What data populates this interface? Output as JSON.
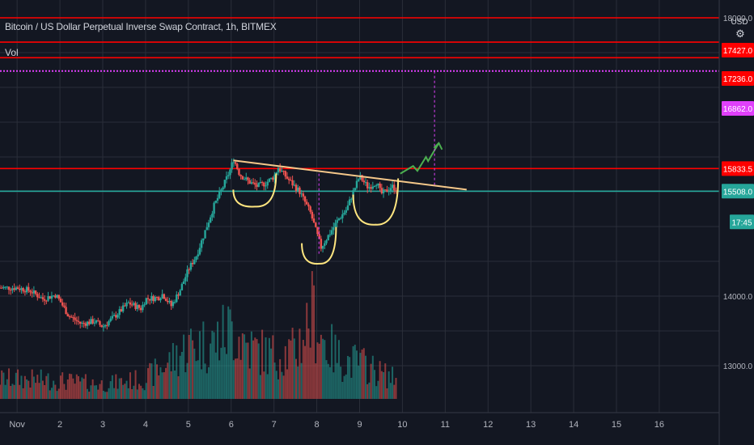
{
  "header": {
    "title": "Bitcoin / US Dollar Perpetual Inverse Swap Contract, 1h, BITMEX",
    "volume_label": "Vol",
    "currency": "USD",
    "gear_icon": "gear-icon"
  },
  "colors": {
    "background": "#131722",
    "grid": "#2a2e39",
    "up": "#26a69a",
    "down": "#ef5350",
    "resistance": "#ff0000",
    "target": "#e040fb",
    "current": "#26a69a",
    "annotation": "#ffe680",
    "trendline": "#f5c88a",
    "projection": "#4caf50"
  },
  "chart_data": {
    "type": "candlestick",
    "title": "Bitcoin / US Dollar Perpetual Inverse Swap Contract, 1h, BITMEX",
    "x_ticks": [
      "Nov",
      "2",
      "3",
      "4",
      "5",
      "6",
      "7",
      "8",
      "9",
      "10",
      "11",
      "12",
      "13",
      "14",
      "15",
      "16"
    ],
    "y_ticks": [
      13000.0,
      14000.0,
      18000.0
    ],
    "ylim": [
      12700,
      18000
    ],
    "xlim": [
      0.6,
      17.4
    ],
    "price_labels": [
      {
        "value": "17427.0",
        "color": "#ff0000",
        "kind": "resistance"
      },
      {
        "value": "17236.0",
        "color": "#ff0000",
        "kind": "resistance"
      },
      {
        "value": "16862.0",
        "color": "#e040fb",
        "kind": "target"
      },
      {
        "value": "15833.5",
        "color": "#ff0000",
        "kind": "neckline"
      },
      {
        "value": "15508.0",
        "color": "#26a69a",
        "kind": "current"
      },
      {
        "value": "17:45",
        "color": "#26a69a",
        "kind": "countdown"
      }
    ],
    "levels": [
      {
        "price": 18000,
        "color": "#ff0000",
        "style": "solid"
      },
      {
        "price": 17650,
        "color": "#ff0000",
        "style": "solid"
      },
      {
        "price": 17427,
        "color": "#ff0000",
        "style": "solid"
      },
      {
        "price": 17236,
        "color": "#e040fb",
        "style": "dotted"
      },
      {
        "price": 15833.5,
        "color": "#ff0000",
        "style": "solid"
      },
      {
        "price": 15508,
        "color": "#26a69a",
        "style": "solid"
      }
    ],
    "price_anchors": [
      [
        1.0,
        14120
      ],
      [
        1.3,
        14080
      ],
      [
        1.6,
        13960
      ],
      [
        1.9,
        14020
      ],
      [
        2.0,
        13930
      ],
      [
        2.2,
        13720
      ],
      [
        2.5,
        13600
      ],
      [
        2.8,
        13640
      ],
      [
        3.0,
        13560
      ],
      [
        3.3,
        13720
      ],
      [
        3.6,
        13900
      ],
      [
        3.9,
        13820
      ],
      [
        4.0,
        13960
      ],
      [
        4.3,
        13980
      ],
      [
        4.4,
        14030
      ],
      [
        4.6,
        13860
      ],
      [
        4.8,
        14080
      ],
      [
        5.0,
        14380
      ],
      [
        5.2,
        14600
      ],
      [
        5.4,
        14950
      ],
      [
        5.6,
        15300
      ],
      [
        5.8,
        15560
      ],
      [
        6.0,
        15850
      ],
      [
        6.05,
        15980
      ],
      [
        6.2,
        15750
      ],
      [
        6.4,
        15650
      ],
      [
        6.6,
        15580
      ],
      [
        6.8,
        15620
      ],
      [
        7.0,
        15720
      ],
      [
        7.1,
        15850
      ],
      [
        7.3,
        15700
      ],
      [
        7.6,
        15500
      ],
      [
        7.85,
        15200
      ],
      [
        8.0,
        14900
      ],
      [
        8.1,
        14700
      ],
      [
        8.3,
        14900
      ],
      [
        8.5,
        15100
      ],
      [
        8.7,
        15250
      ],
      [
        8.85,
        15500
      ],
      [
        9.0,
        15720
      ],
      [
        9.2,
        15560
      ],
      [
        9.4,
        15640
      ],
      [
        9.5,
        15470
      ],
      [
        9.6,
        15500
      ],
      [
        9.75,
        15580
      ],
      [
        9.85,
        15540
      ]
    ],
    "volume_profile": [
      [
        1.0,
        0.22
      ],
      [
        2.0,
        0.2
      ],
      [
        3.0,
        0.16
      ],
      [
        4.0,
        0.22
      ],
      [
        4.6,
        0.42
      ],
      [
        5.0,
        0.58
      ],
      [
        5.6,
        0.62
      ],
      [
        6.0,
        0.78
      ],
      [
        6.5,
        0.55
      ],
      [
        7.0,
        0.48
      ],
      [
        7.5,
        0.52
      ],
      [
        7.9,
        0.95
      ],
      [
        8.2,
        0.6
      ],
      [
        8.6,
        0.42
      ],
      [
        9.0,
        0.4
      ],
      [
        9.5,
        0.28
      ],
      [
        9.85,
        0.22
      ]
    ],
    "annotations": {
      "trendline": [
        [
          6.05,
          15950
        ],
        [
          11.5,
          15530
        ]
      ],
      "left_shoulder": {
        "x": [
          6.05,
          7.05
        ],
        "y_top": 15530,
        "y_bottom": 15380
      },
      "head": {
        "x": [
          7.65,
          8.45
        ],
        "y_top": 14760,
        "y_bottom": 14560
      },
      "right_shoulder": {
        "x": [
          8.85,
          9.9
        ],
        "y_top": 15460,
        "y_bottom": 15120
      },
      "projection": [
        [
          9.95,
          15760
        ],
        [
          10.25,
          15870
        ],
        [
          10.35,
          15800
        ],
        [
          10.55,
          16000
        ],
        [
          10.6,
          15940
        ],
        [
          10.85,
          16200
        ]
      ],
      "target_marker_x": 10.75,
      "head_marker_x": 8.05
    }
  }
}
